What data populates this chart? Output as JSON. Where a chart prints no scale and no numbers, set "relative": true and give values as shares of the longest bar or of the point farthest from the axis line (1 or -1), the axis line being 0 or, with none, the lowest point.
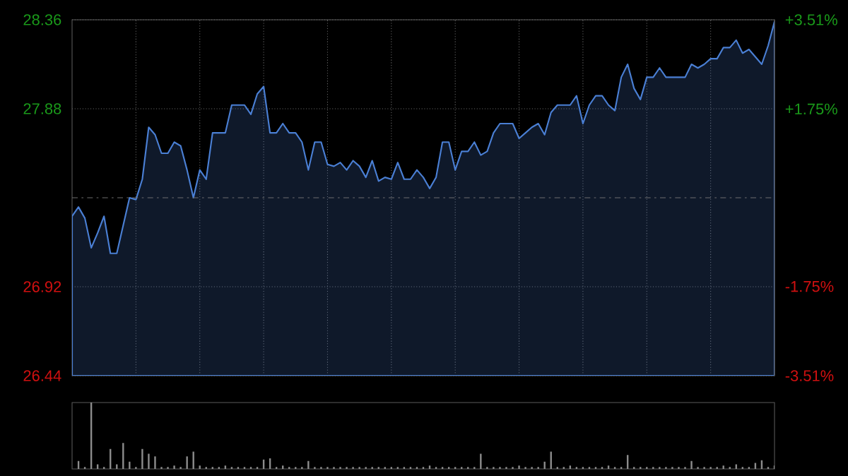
{
  "chart_data": [
    {
      "type": "area",
      "categories": [
        null,
        null,
        null,
        null,
        null,
        null,
        null,
        null,
        null,
        null,
        null,
        null,
        null,
        null,
        null,
        null,
        null,
        null,
        null,
        null,
        null,
        null,
        null,
        null,
        null,
        null,
        null,
        null,
        null,
        null,
        null,
        null,
        null,
        null,
        null,
        null,
        null,
        null,
        null,
        null,
        null,
        null,
        null,
        null,
        null,
        null,
        null,
        null,
        null,
        null,
        null,
        null,
        null,
        null,
        null,
        null,
        null,
        null,
        null,
        null,
        null,
        null,
        null,
        null,
        null,
        null,
        null,
        null,
        null,
        null,
        null,
        null,
        null,
        null,
        null,
        null,
        null,
        null,
        null,
        null,
        null,
        null,
        null,
        null,
        null,
        null,
        null,
        null,
        null,
        null,
        null,
        null,
        null,
        null,
        null,
        null,
        null,
        null,
        null,
        null,
        null,
        null,
        null,
        null,
        null,
        null,
        null,
        null,
        null,
        null,
        null
      ],
      "series": [
        {
          "color": "#4a7fd4",
          "values": [
            27.3,
            27.35,
            27.29,
            27.13,
            27.21,
            27.3,
            27.1,
            27.1,
            27.25,
            27.4,
            27.39,
            27.5,
            27.78,
            27.74,
            27.64,
            27.64,
            27.7,
            27.68,
            27.55,
            27.4,
            27.55,
            27.5,
            27.75,
            27.75,
            27.75,
            27.9,
            27.9,
            27.9,
            27.85,
            27.96,
            28.0,
            27.75,
            27.75,
            27.8,
            27.75,
            27.75,
            27.7,
            27.55,
            27.7,
            27.7,
            27.58,
            27.57,
            27.59,
            27.55,
            27.6,
            27.57,
            27.51,
            27.6,
            27.49,
            27.51,
            27.5,
            27.59,
            27.5,
            27.5,
            27.55,
            27.51,
            27.45,
            27.51,
            27.7,
            27.7,
            27.55,
            27.65,
            27.65,
            27.7,
            27.63,
            27.65,
            27.75,
            27.8,
            27.8,
            27.8,
            27.72,
            27.75,
            27.78,
            27.8,
            27.74,
            27.86,
            27.9,
            27.9,
            27.9,
            27.95,
            27.8,
            27.9,
            27.95,
            27.95,
            27.9,
            27.87,
            28.05,
            28.12,
            27.99,
            27.93,
            28.05,
            28.05,
            28.1,
            28.05,
            28.05,
            28.05,
            28.05,
            28.12,
            28.1,
            28.12,
            28.15,
            28.15,
            28.21,
            28.21,
            28.25,
            28.18,
            28.2,
            28.16,
            28.12,
            28.22,
            28.35
          ]
        }
      ],
      "ylim": [
        26.44,
        28.36
      ],
      "yticks": [
        26.44,
        26.92,
        27.88,
        28.36
      ],
      "y2lim": [
        -3.51,
        3.51
      ],
      "y2ticks": [
        {
          "value": -3.51,
          "label": "-3.51%"
        },
        {
          "value": -1.75,
          "label": "-1.75%"
        },
        {
          "value": 1.75,
          "label": "+1.75%"
        },
        {
          "value": 3.51,
          "label": "+3.51%"
        }
      ],
      "grid": true,
      "marker": "none",
      "line_style": "solid",
      "ref_lines": [
        {
          "axis": "y",
          "value": 27.4,
          "line_style": "dashed"
        }
      ]
    },
    {
      "type": "bar",
      "relative": true,
      "color": "#8c8c8c",
      "categories": [
        null,
        null,
        null,
        null,
        null,
        null,
        null,
        null,
        null,
        null,
        null,
        null,
        null,
        null,
        null,
        null,
        null,
        null,
        null,
        null,
        null,
        null,
        null,
        null,
        null,
        null,
        null,
        null,
        null,
        null,
        null,
        null,
        null,
        null,
        null,
        null,
        null,
        null,
        null,
        null,
        null,
        null,
        null,
        null,
        null,
        null,
        null,
        null,
        null,
        null,
        null,
        null,
        null,
        null,
        null,
        null,
        null,
        null,
        null,
        null,
        null,
        null,
        null,
        null,
        null,
        null,
        null,
        null,
        null,
        null,
        null,
        null,
        null,
        null,
        null,
        null,
        null,
        null,
        null,
        null,
        null,
        null,
        null,
        null,
        null,
        null,
        null,
        null,
        null,
        null,
        null,
        null,
        null,
        null,
        null,
        null,
        null,
        null,
        null,
        null,
        null,
        null,
        null,
        null,
        null,
        null,
        null,
        null,
        null,
        null,
        null
      ],
      "values": [
        null,
        0.12,
        0.03,
        1,
        0.07,
        0.03,
        0.3,
        0.07,
        0.39,
        0.11,
        0.03,
        0.3,
        0.23,
        0.19,
        0.03,
        0.03,
        0.05,
        0.03,
        0.19,
        0.26,
        0.05,
        0.03,
        0.03,
        0.03,
        0.05,
        0.03,
        0.03,
        0.03,
        0.03,
        0.03,
        0.14,
        0.16,
        0.03,
        0.05,
        0.03,
        0.03,
        0.03,
        0.12,
        0.03,
        0.03,
        0.03,
        0.03,
        0.03,
        0.03,
        0.03,
        0.03,
        0.03,
        0.03,
        0.03,
        0.03,
        0.03,
        0.03,
        0.03,
        0.03,
        0.03,
        0.03,
        0.05,
        0.03,
        0.03,
        0.03,
        0.03,
        0.03,
        0.03,
        0.03,
        0.23,
        0.03,
        0.03,
        0.03,
        0.03,
        0.03,
        0.05,
        0.03,
        0.03,
        0.03,
        0.11,
        0.26,
        0.03,
        0.03,
        0.05,
        0.03,
        0.03,
        0.03,
        0.03,
        0.03,
        0.05,
        0.03,
        0.03,
        0.21,
        0.03,
        0.03,
        0.03,
        0.03,
        0.03,
        0.03,
        0.03,
        0.03,
        0.03,
        0.12,
        0.03,
        0.03,
        0.03,
        0.03,
        0.05,
        0.03,
        0.07,
        0.03,
        0.03,
        0.09,
        0.13,
        0.03,
        0.05
      ]
    }
  ]
}
